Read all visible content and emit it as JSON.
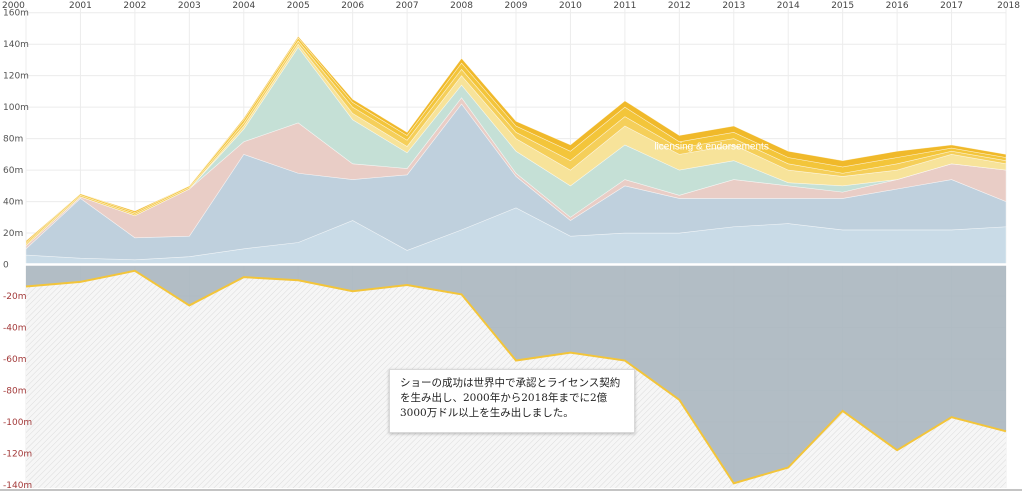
{
  "chart_data": {
    "type": "area",
    "years": [
      2000,
      2001,
      2002,
      2003,
      2004,
      2005,
      2006,
      2007,
      2008,
      2009,
      2010,
      2011,
      2012,
      2013,
      2014,
      2015,
      2016,
      2017,
      2018
    ],
    "y_ticks": [
      "160m",
      "140m",
      "120m",
      "100m",
      "80m",
      "60m",
      "40m",
      "20m",
      "0",
      "-20m",
      "-40m",
      "-60m",
      "-80m",
      "-100m",
      "-120m",
      "-140m"
    ],
    "y_tick_values": [
      160,
      140,
      120,
      100,
      80,
      60,
      40,
      20,
      0,
      -20,
      -40,
      -60,
      -80,
      -100,
      -120,
      -140
    ],
    "ylim": [
      -142,
      163
    ],
    "grid": true,
    "positive_series": [
      {
        "color": "#c9dbe7",
        "values": [
          6,
          4,
          3,
          5,
          10,
          14,
          28,
          9,
          22,
          36,
          18,
          20,
          20,
          24,
          26,
          22,
          22,
          22,
          24
        ]
      },
      {
        "color": "#bfd0dd",
        "values": [
          4,
          38,
          14,
          13,
          60,
          44,
          26,
          48,
          80,
          20,
          10,
          30,
          22,
          18,
          16,
          20,
          26,
          32,
          16
        ]
      },
      {
        "color": "#e9cdc6",
        "values": [
          2,
          1,
          14,
          30,
          8,
          32,
          10,
          4,
          4,
          2,
          2,
          4,
          2,
          12,
          8,
          4,
          6,
          10,
          20
        ]
      },
      {
        "color": "#c5e0d6",
        "values": [
          0,
          0,
          0,
          0,
          8,
          48,
          28,
          10,
          8,
          14,
          20,
          22,
          16,
          12,
          2,
          4,
          0,
          0,
          0
        ]
      },
      {
        "color": "#f7e39a",
        "values": [
          0,
          0,
          0,
          0,
          2,
          2,
          4,
          4,
          6,
          8,
          10,
          12,
          10,
          10,
          8,
          6,
          6,
          6,
          4
        ]
      },
      {
        "color": "#f5cf5a",
        "values": [
          1,
          1,
          1,
          1,
          2,
          2,
          4,
          4,
          4,
          4,
          6,
          6,
          4,
          4,
          4,
          2,
          4,
          2,
          2
        ]
      },
      {
        "color": "#f3c53a",
        "values": [
          1,
          1,
          1,
          1,
          2,
          2,
          3,
          3,
          4,
          4,
          6,
          6,
          4,
          4,
          4,
          4,
          4,
          2,
          2
        ]
      },
      {
        "color": "#f0b92a",
        "values": [
          1,
          0,
          1,
          0,
          1,
          1,
          2,
          2,
          3,
          3,
          4,
          4,
          4,
          4,
          4,
          4,
          4,
          2,
          2
        ]
      }
    ],
    "negative_series": [
      {
        "color": "#aab6bf",
        "values": [
          -14,
          -11,
          -4,
          -26,
          -8,
          -10,
          -17,
          -13,
          -19,
          -61,
          -56,
          -61,
          -86,
          -139,
          -129,
          -93,
          -118,
          -97,
          -106
        ]
      }
    ],
    "line_color": "#f3c53a",
    "stream_label": "licensing & endorsements",
    "annotation": "ショーの成功は世界中で承認とライセンス契約を生み出し、2000年から2018年までに2億3000万ドル以上を生み出しました。"
  }
}
